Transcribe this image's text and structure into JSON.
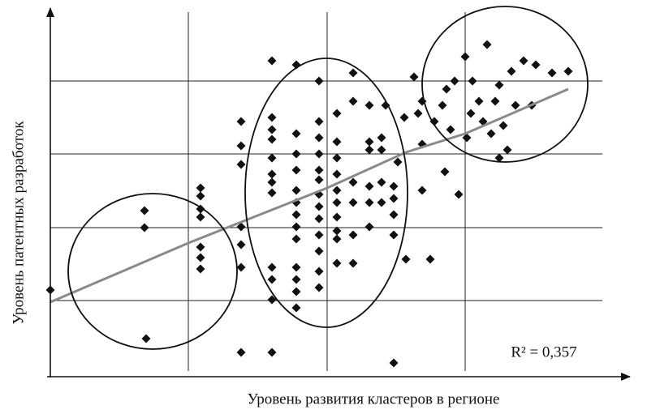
{
  "chart_data": {
    "type": "scatter",
    "x_label": "Уровень развития кластеров в регионе",
    "y_label": "Уровень патентных разработок",
    "annotation": "R² = 0,357",
    "xlim": [
      0,
      708
    ],
    "ylim": [
      0,
      450
    ],
    "xticks": [
      170,
      341,
      511
    ],
    "yticks": [
      90,
      180,
      271,
      361
    ],
    "grid": true,
    "color": "#111111",
    "x": [
      0,
      116,
      116,
      118,
      185,
      185,
      185,
      185,
      185,
      185,
      185,
      235,
      235,
      235,
      235,
      235,
      235,
      235,
      273,
      273,
      273,
      273,
      273,
      273,
      273,
      273,
      273,
      273,
      273,
      273,
      303,
      303,
      303,
      303,
      303,
      303,
      303,
      303,
      303,
      303,
      303,
      303,
      303,
      331,
      331,
      331,
      331,
      331,
      331,
      331,
      331,
      331,
      331,
      331,
      331,
      331,
      353,
      353,
      353,
      353,
      353,
      353,
      353,
      353,
      353,
      353,
      373,
      373,
      373,
      373,
      373,
      373,
      393,
      393,
      393,
      393,
      393,
      393,
      408,
      408,
      408,
      408,
      413,
      423,
      423,
      423,
      423,
      428,
      436,
      423,
      438,
      448,
      453,
      458,
      458,
      468,
      473,
      486,
      488,
      493,
      498,
      503,
      511,
      513,
      520,
      518,
      528,
      533,
      538,
      543,
      548,
      553,
      558,
      563,
      568,
      573,
      583,
      593,
      598,
      618,
      638,
      553,
      458,
      483
    ],
    "values": [
      103,
      201,
      180,
      43,
      229,
      219,
      203,
      193,
      156,
      143,
      129,
      311,
      281,
      258,
      181,
      159,
      131,
      26,
      386,
      316,
      301,
      289,
      266,
      246,
      236,
      223,
      131,
      116,
      91,
      26,
      381,
      296,
      271,
      251,
      226,
      211,
      196,
      181,
      166,
      131,
      116,
      101,
      81,
      361,
      311,
      291,
      271,
      251,
      239,
      221,
      206,
      191,
      171,
      151,
      126,
      106,
      321,
      286,
      266,
      246,
      226,
      211,
      193,
      176,
      166,
      136,
      371,
      336,
      236,
      211,
      171,
      136,
      331,
      286,
      276,
      231,
      211,
      181,
      291,
      276,
      236,
      211,
      331,
      231,
      216,
      196,
      171,
      261,
      316,
      13,
      141,
      366,
      321,
      283,
      226,
      141,
      311,
      249,
      351,
      301,
      361,
      221,
      391,
      291,
      361,
      321,
      336,
      311,
      406,
      296,
      336,
      356,
      306,
      276,
      373,
      331,
      386,
      331,
      381,
      371,
      373,
      266,
      336,
      331
    ],
    "trend": {
      "color": "#8a8a8a",
      "x": [
        0,
        170,
        341,
        438,
        511,
        638
      ],
      "values": [
        88,
        161,
        229,
        273,
        296,
        351
      ]
    }
  }
}
